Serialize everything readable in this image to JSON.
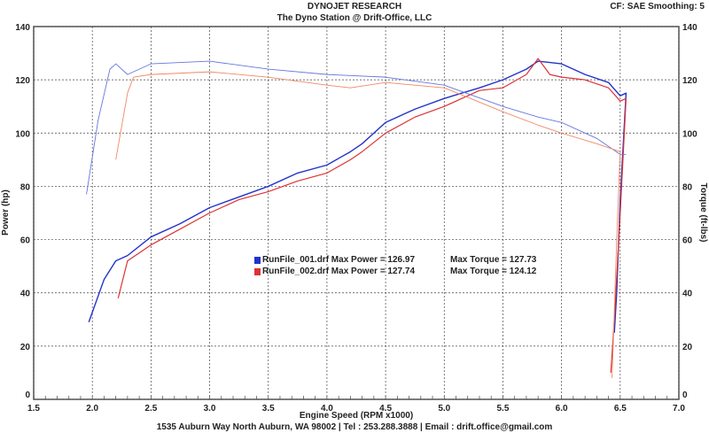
{
  "header": {
    "title": "DYNOJET RESEARCH",
    "subtitle": "The Dyno Station @ Drift-Office, LLC",
    "settings": "CF: SAE  Smoothing: 5"
  },
  "footer": "1535 Auburn Way North Auburn, WA 98002 | Tel : 253.288.3888 | Email : drift.office@gmail.com",
  "legend": [
    {
      "file": "RunFile_001.drf Max Power = 126.97",
      "torque": "Max Torque = 127.73",
      "color": "#2233cc"
    },
    {
      "file": "RunFile_002.drf Max Power = 127.74",
      "torque": "Max Torque = 124.12",
      "color": "#dd3333"
    }
  ],
  "chart_data": {
    "type": "line",
    "xlabel": "Engine Speed (RPM x1000)",
    "ylabel": "Power (hp)",
    "y2label": "Torque (ft-lbs)",
    "xlim": [
      1.5,
      7.0
    ],
    "ylim": [
      0,
      140
    ],
    "grid": true,
    "xticks": [
      "1.5",
      "2.0",
      "2.5",
      "3.0",
      "3.5",
      "4.0",
      "4.5",
      "5.0",
      "5.5",
      "6.0",
      "6.5",
      "7.0"
    ],
    "yticks": [
      "0",
      "20",
      "40",
      "60",
      "80",
      "100",
      "120",
      "140"
    ],
    "series": [
      {
        "name": "RunFile_001 Power",
        "color": "#2233cc",
        "width": 1.4,
        "points": [
          [
            1.97,
            29
          ],
          [
            2.1,
            45
          ],
          [
            2.2,
            52
          ],
          [
            2.3,
            54
          ],
          [
            2.5,
            61
          ],
          [
            2.75,
            66
          ],
          [
            3.0,
            72
          ],
          [
            3.25,
            76
          ],
          [
            3.5,
            80
          ],
          [
            3.75,
            85
          ],
          [
            4.0,
            88
          ],
          [
            4.2,
            93
          ],
          [
            4.3,
            96
          ],
          [
            4.5,
            104
          ],
          [
            4.75,
            109
          ],
          [
            5.0,
            113
          ],
          [
            5.3,
            117
          ],
          [
            5.5,
            120
          ],
          [
            5.7,
            124
          ],
          [
            5.8,
            127
          ],
          [
            6.0,
            126
          ],
          [
            6.2,
            122
          ],
          [
            6.4,
            119
          ],
          [
            6.5,
            114
          ],
          [
            6.55,
            115
          ],
          [
            6.5,
            75
          ],
          [
            6.47,
            40
          ],
          [
            6.45,
            25
          ]
        ]
      },
      {
        "name": "RunFile_002 Power",
        "color": "#dd3333",
        "width": 1.2,
        "points": [
          [
            2.22,
            38
          ],
          [
            2.3,
            52
          ],
          [
            2.5,
            58
          ],
          [
            2.75,
            64
          ],
          [
            3.0,
            70
          ],
          [
            3.25,
            75
          ],
          [
            3.5,
            78
          ],
          [
            3.75,
            82
          ],
          [
            4.0,
            85
          ],
          [
            4.2,
            90
          ],
          [
            4.3,
            93
          ],
          [
            4.5,
            100
          ],
          [
            4.75,
            106
          ],
          [
            5.0,
            110
          ],
          [
            5.3,
            116
          ],
          [
            5.5,
            117
          ],
          [
            5.7,
            122
          ],
          [
            5.8,
            128
          ],
          [
            5.9,
            122
          ],
          [
            6.0,
            121
          ],
          [
            6.2,
            120
          ],
          [
            6.4,
            117
          ],
          [
            6.5,
            112
          ],
          [
            6.55,
            113
          ],
          [
            6.5,
            70
          ],
          [
            6.45,
            30
          ],
          [
            6.42,
            10
          ]
        ]
      },
      {
        "name": "RunFile_001 Torque",
        "color": "#6677dd",
        "width": 0.9,
        "points": [
          [
            1.95,
            77
          ],
          [
            2.05,
            105
          ],
          [
            2.15,
            124
          ],
          [
            2.2,
            126
          ],
          [
            2.3,
            122
          ],
          [
            2.5,
            126
          ],
          [
            3.0,
            127
          ],
          [
            3.5,
            124
          ],
          [
            4.0,
            122
          ],
          [
            4.5,
            121
          ],
          [
            5.0,
            118
          ],
          [
            5.5,
            110
          ],
          [
            5.8,
            106
          ],
          [
            6.0,
            104
          ],
          [
            6.3,
            98
          ],
          [
            6.5,
            92
          ],
          [
            6.55,
            92
          ]
        ]
      },
      {
        "name": "RunFile_002 Torque",
        "color": "#ee8866",
        "width": 0.9,
        "points": [
          [
            2.2,
            90
          ],
          [
            2.3,
            115
          ],
          [
            2.35,
            121
          ],
          [
            2.5,
            122
          ],
          [
            3.0,
            123
          ],
          [
            3.5,
            121
          ],
          [
            4.0,
            118
          ],
          [
            4.2,
            117
          ],
          [
            4.5,
            119
          ],
          [
            5.0,
            117
          ],
          [
            5.5,
            108
          ],
          [
            5.8,
            103
          ],
          [
            6.0,
            100
          ],
          [
            6.3,
            96
          ],
          [
            6.5,
            93
          ],
          [
            6.47,
            60
          ],
          [
            6.44,
            20
          ],
          [
            6.43,
            8
          ]
        ]
      }
    ]
  }
}
